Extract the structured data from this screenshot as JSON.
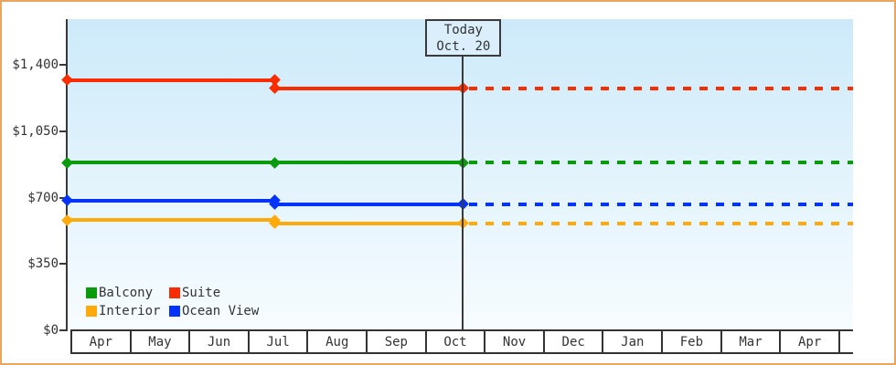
{
  "window": {
    "frame_color": "#eba55d",
    "background": "#ffffff"
  },
  "today_box": {
    "line1": "Today",
    "line2": "Oct. 20"
  },
  "chart_data": {
    "type": "line",
    "x_categories": [
      "Apr",
      "May",
      "Jun",
      "Jul",
      "Aug",
      "Sep",
      "Oct",
      "Nov",
      "Dec",
      "Jan",
      "Feb",
      "Mar",
      "Apr"
    ],
    "x_trailing_empty_cell": true,
    "ylim": [
      0,
      1400
    ],
    "y_ticks": [
      {
        "label": "$0",
        "value": 0
      },
      {
        "label": "$350",
        "value": 350
      },
      {
        "label": "$700",
        "value": 700
      },
      {
        "label": "$1,050",
        "value": 1050
      },
      {
        "label": "$1,400",
        "value": 1400
      }
    ],
    "grid": false,
    "plot_background": [
      "#cdeafa",
      "#f7fcff"
    ],
    "today": {
      "label": "Today",
      "date": "Oct. 20",
      "month_offset": 6,
      "day": 20
    },
    "projection_style": "dashed-after-today",
    "series": [
      {
        "name": "Suite",
        "color": "#fb2d00",
        "points": [
          {
            "date": "Apr",
            "month_offset": 0,
            "day": 1,
            "value": 1320
          },
          {
            "date": "mid-Jul",
            "month_offset": 3,
            "day": 14,
            "value": 1320
          },
          {
            "date": "mid-Jul",
            "month_offset": 3,
            "day": 14,
            "value": 1275
          },
          {
            "date": "Oct 20",
            "month_offset": 6,
            "day": 20,
            "value": 1275
          }
        ],
        "projected_value": 1275
      },
      {
        "name": "Balcony",
        "color": "#0a9b0b",
        "points": [
          {
            "date": "Apr",
            "month_offset": 0,
            "day": 1,
            "value": 885
          },
          {
            "date": "mid-Jul",
            "month_offset": 3,
            "day": 14,
            "value": 885
          },
          {
            "date": "Oct 20",
            "month_offset": 6,
            "day": 20,
            "value": 885
          }
        ],
        "projected_value": 885
      },
      {
        "name": "Ocean View",
        "color": "#0434fb",
        "points": [
          {
            "date": "Apr",
            "month_offset": 0,
            "day": 1,
            "value": 685
          },
          {
            "date": "mid-Jul",
            "month_offset": 3,
            "day": 14,
            "value": 685
          },
          {
            "date": "mid-Jul",
            "month_offset": 3,
            "day": 14,
            "value": 665
          },
          {
            "date": "Oct 20",
            "month_offset": 6,
            "day": 20,
            "value": 665
          }
        ],
        "projected_value": 665
      },
      {
        "name": "Interior",
        "color": "#ffa90a",
        "points": [
          {
            "date": "Apr",
            "month_offset": 0,
            "day": 1,
            "value": 580
          },
          {
            "date": "mid-Jul",
            "month_offset": 3,
            "day": 14,
            "value": 580
          },
          {
            "date": "mid-Jul",
            "month_offset": 3,
            "day": 14,
            "value": 565
          },
          {
            "date": "Oct 20",
            "month_offset": 6,
            "day": 20,
            "value": 565
          }
        ],
        "projected_value": 565
      }
    ],
    "legend": {
      "position": "inside-bottom-left",
      "items": [
        {
          "label": "Balcony",
          "color": "#0a9b0b"
        },
        {
          "label": "Suite",
          "color": "#fb2d00"
        },
        {
          "label": "Interior",
          "color": "#ffa90a"
        },
        {
          "label": "Ocean View",
          "color": "#0434fb"
        }
      ]
    }
  }
}
